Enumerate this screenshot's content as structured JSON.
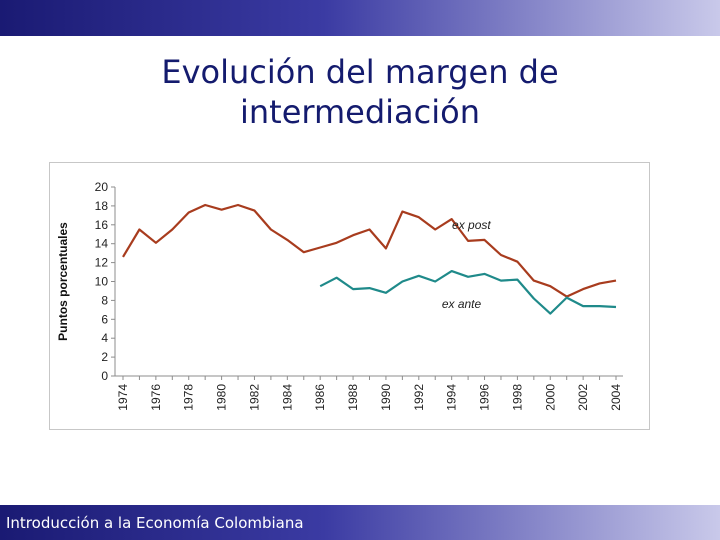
{
  "title": {
    "line1": "Evolución del margen de",
    "line2": "intermediación"
  },
  "footer": {
    "text": "Introducción a la Economía Colombiana"
  },
  "colors": {
    "ex_post": "#a83c1e",
    "ex_ante": "#1f8a8a",
    "band_dark": "#1a1a73",
    "band_light": "#c9c9ea",
    "title": "#141b6e"
  },
  "chart_data": {
    "type": "line",
    "title": "",
    "xlabel": "",
    "ylabel": "Puntos porcentuales",
    "ylim": [
      0,
      20
    ],
    "yticks": [
      0,
      2,
      4,
      6,
      8,
      10,
      12,
      14,
      16,
      18,
      20
    ],
    "xlim": [
      1974,
      2004
    ],
    "xticks": [
      1974,
      1976,
      1978,
      1980,
      1982,
      1984,
      1986,
      1988,
      1990,
      1992,
      1994,
      1996,
      1998,
      2000,
      2002,
      2004
    ],
    "grid": false,
    "legend": "inline labels",
    "series": [
      {
        "name": "ex post",
        "x": [
          1974,
          1975,
          1976,
          1977,
          1978,
          1979,
          1980,
          1981,
          1982,
          1983,
          1984,
          1985,
          1986,
          1987,
          1988,
          1989,
          1990,
          1991,
          1992,
          1993,
          1994,
          1995,
          1996,
          1997,
          1998,
          1999,
          2000,
          2001,
          2002,
          2003,
          2004
        ],
        "values": [
          12.6,
          15.5,
          14.1,
          15.5,
          17.3,
          18.1,
          17.6,
          18.1,
          17.5,
          15.5,
          14.4,
          13.1,
          13.6,
          14.1,
          14.9,
          15.5,
          13.5,
          17.4,
          16.8,
          15.5,
          16.6,
          14.3,
          14.4,
          12.8,
          12.1,
          10.1,
          9.5,
          8.4,
          9.2,
          9.8,
          10.1
        ]
      },
      {
        "name": "ex ante",
        "x": [
          1986,
          1987,
          1988,
          1989,
          1990,
          1991,
          1992,
          1993,
          1994,
          1995,
          1996,
          1997,
          1998,
          1999,
          2000,
          2001,
          2002,
          2003,
          2004
        ],
        "values": [
          9.5,
          10.4,
          9.2,
          9.3,
          8.8,
          10.0,
          10.6,
          10.0,
          11.1,
          10.5,
          10.8,
          10.1,
          10.2,
          8.2,
          6.6,
          8.3,
          7.4,
          7.4,
          7.3
        ]
      }
    ],
    "annotations": [
      {
        "series": "ex post",
        "text": "ex post"
      },
      {
        "series": "ex ante",
        "text": "ex ante"
      }
    ]
  }
}
